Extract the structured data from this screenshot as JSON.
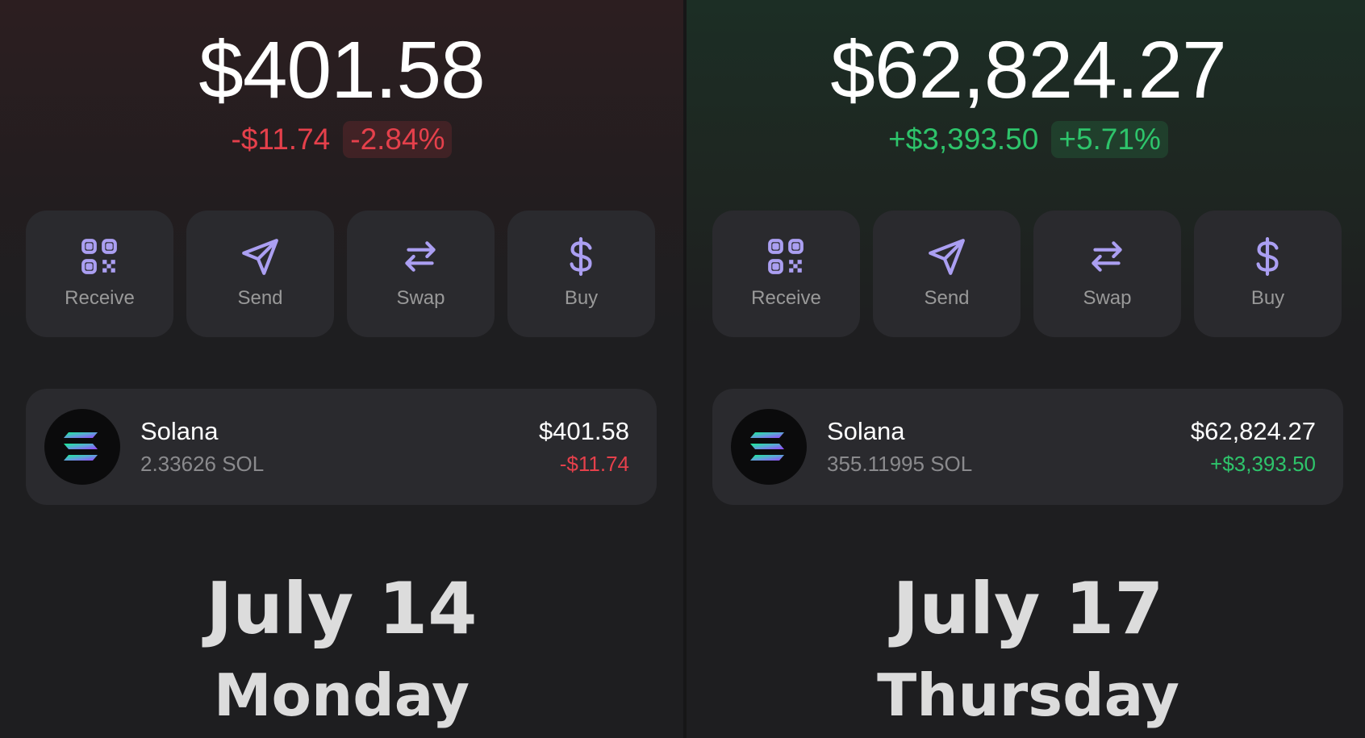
{
  "panels": [
    {
      "balance": "$401.58",
      "change": "-$11.74",
      "change_percent": "-2.84%",
      "actions": [
        "Receive",
        "Send",
        "Swap",
        "Buy"
      ],
      "token": {
        "name": "Solana",
        "amount": "2.33626 SOL",
        "value": "$401.58",
        "change": "-$11.74"
      },
      "date": "July 14",
      "weekday": "Monday"
    },
    {
      "balance": "$62,824.27",
      "change": "+$3,393.50",
      "change_percent": "+5.71%",
      "actions": [
        "Receive",
        "Send",
        "Swap",
        "Buy"
      ],
      "token": {
        "name": "Solana",
        "amount": "355.11995 SOL",
        "value": "$62,824.27",
        "change": "+$3,393.50"
      },
      "date": "July 17",
      "weekday": "Thursday"
    }
  ]
}
